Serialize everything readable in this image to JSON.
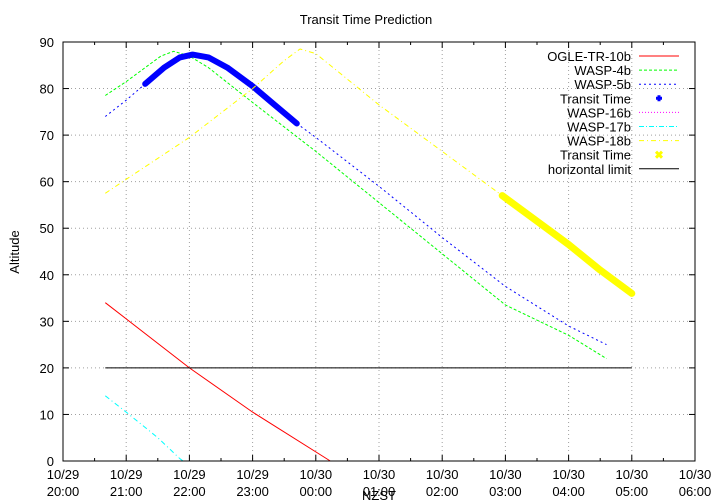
{
  "chart_data": {
    "type": "line",
    "title": "Transit Time Prediction",
    "xlabel": "NZST",
    "ylabel": "Altitude",
    "ylim": [
      0,
      90
    ],
    "xlim_hours_after_2000": [
      0,
      10
    ],
    "grid": true,
    "legend_position": "top-right-inside",
    "yticks": [
      "0",
      "10",
      "20",
      "30",
      "40",
      "50",
      "60",
      "70",
      "80",
      "90"
    ],
    "xticks": [
      {
        "date": "10/29",
        "time": "20:00"
      },
      {
        "date": "10/29",
        "time": "21:00"
      },
      {
        "date": "10/29",
        "time": "22:00"
      },
      {
        "date": "10/29",
        "time": "23:00"
      },
      {
        "date": "10/30",
        "time": "00:00"
      },
      {
        "date": "10/30",
        "time": "01:00"
      },
      {
        "date": "10/30",
        "time": "02:00"
      },
      {
        "date": "10/30",
        "time": "03:00"
      },
      {
        "date": "10/30",
        "time": "04:00"
      },
      {
        "date": "10/30",
        "time": "05:00"
      },
      {
        "date": "10/30",
        "time": "06:00"
      }
    ],
    "series": [
      {
        "name": "OGLE-TR-10b",
        "color": "#ff0000",
        "style": "solid",
        "width": 0.8,
        "points": [
          [
            0.67,
            34
          ],
          [
            2.0,
            20
          ],
          [
            3.0,
            10.5
          ],
          [
            4.23,
            0
          ]
        ]
      },
      {
        "name": "WASP-4b",
        "color": "#00ff00",
        "style": "dashed",
        "width": 0.8,
        "points": [
          [
            0.67,
            78.5
          ],
          [
            1.0,
            81.5
          ],
          [
            1.3,
            84.5
          ],
          [
            1.55,
            87
          ],
          [
            1.75,
            88
          ],
          [
            2.0,
            87
          ],
          [
            2.3,
            84.5
          ],
          [
            3.0,
            77
          ],
          [
            4.0,
            66.5
          ],
          [
            5.0,
            55.5
          ],
          [
            6.0,
            44.5
          ],
          [
            7.0,
            33.5
          ],
          [
            8.0,
            27
          ],
          [
            8.6,
            22
          ]
        ]
      },
      {
        "name": "WASP-5b",
        "color": "#0000ff",
        "style": "dotted",
        "width": 0.8,
        "points": [
          [
            0.67,
            74
          ],
          [
            1.0,
            77.5
          ],
          [
            1.3,
            81
          ],
          [
            1.6,
            84.5
          ],
          [
            1.85,
            86.7
          ],
          [
            2.05,
            87.3
          ],
          [
            2.3,
            86.7
          ],
          [
            2.6,
            84.5
          ],
          [
            3.0,
            80.5
          ],
          [
            3.7,
            72.5
          ],
          [
            4.0,
            69.5
          ],
          [
            5.0,
            59
          ],
          [
            6.0,
            48
          ],
          [
            7.0,
            37.5
          ],
          [
            8.0,
            29
          ],
          [
            8.6,
            25
          ]
        ]
      },
      {
        "name": "Transit Time",
        "color": "#0000ff",
        "style": "markers-plus",
        "width": 6,
        "points": [
          [
            1.3,
            81
          ],
          [
            1.6,
            84.5
          ],
          [
            1.85,
            86.7
          ],
          [
            2.05,
            87.3
          ],
          [
            2.3,
            86.7
          ],
          [
            2.6,
            84.5
          ],
          [
            3.0,
            80.5
          ],
          [
            3.35,
            76.5
          ],
          [
            3.7,
            72.5
          ]
        ]
      },
      {
        "name": "WASP-16b",
        "color": "#ff00ff",
        "style": "dotted",
        "width": 0.8,
        "points": []
      },
      {
        "name": "WASP-17b",
        "color": "#00ffff",
        "style": "dashdot",
        "width": 0.8,
        "points": [
          [
            0.67,
            14
          ],
          [
            1.0,
            10.5
          ],
          [
            1.5,
            5
          ],
          [
            1.85,
            0.5
          ],
          [
            1.9,
            0
          ]
        ]
      },
      {
        "name": "WASP-18b",
        "color": "#ffff00",
        "style": "dashdot",
        "width": 0.8,
        "points": [
          [
            0.67,
            57.5
          ],
          [
            1.0,
            60.5
          ],
          [
            2.0,
            69.5
          ],
          [
            3.0,
            80
          ],
          [
            3.5,
            86
          ],
          [
            3.75,
            88.5
          ],
          [
            4.0,
            87.5
          ],
          [
            4.5,
            82
          ],
          [
            5.0,
            76.5
          ],
          [
            6.0,
            66.5
          ],
          [
            6.95,
            57
          ],
          [
            8.0,
            46.5
          ],
          [
            9.0,
            36
          ]
        ]
      },
      {
        "name": "Transit Time",
        "color": "#ffff00",
        "style": "markers-x",
        "width": 7,
        "points": [
          [
            6.95,
            57
          ],
          [
            7.5,
            51.5
          ],
          [
            8.0,
            46.5
          ],
          [
            8.5,
            41
          ],
          [
            9.0,
            36
          ]
        ]
      },
      {
        "name": "horizontal limit",
        "color": "#000000",
        "style": "solid",
        "width": 1,
        "points": [
          [
            0.67,
            20
          ],
          [
            9.0,
            20
          ]
        ]
      }
    ]
  },
  "legend": {
    "items": [
      {
        "label": "OGLE-TR-10b",
        "color": "#ff0000",
        "kind": "line",
        "dash": ""
      },
      {
        "label": "WASP-4b",
        "color": "#00ff00",
        "kind": "line",
        "dash": "3,2"
      },
      {
        "label": "WASP-5b",
        "color": "#0000ff",
        "kind": "line",
        "dash": "2,3"
      },
      {
        "label": "Transit Time",
        "color": "#0000ff",
        "kind": "plus",
        "dash": ""
      },
      {
        "label": "WASP-16b",
        "color": "#ff00ff",
        "kind": "line",
        "dash": "1,2"
      },
      {
        "label": "WASP-17b",
        "color": "#00ffff",
        "kind": "line",
        "dash": "5,2,1,2"
      },
      {
        "label": "WASP-18b",
        "color": "#ffff00",
        "kind": "line",
        "dash": "5,3,1,3"
      },
      {
        "label": "Transit Time",
        "color": "#ffff00",
        "kind": "cross",
        "dash": ""
      },
      {
        "label": "horizontal limit",
        "color": "#000000",
        "kind": "line",
        "dash": ""
      }
    ]
  }
}
